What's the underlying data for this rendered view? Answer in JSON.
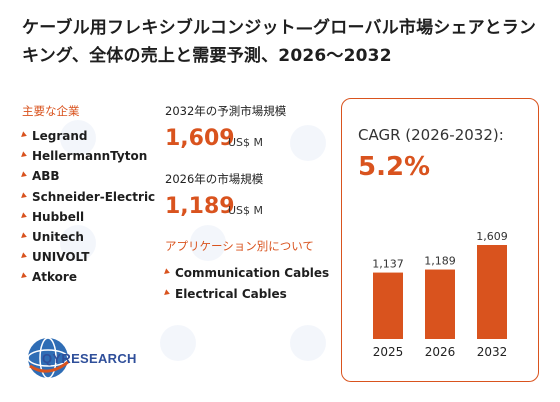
{
  "title": "ケーブル用フレキシブルコンジット—グローバル市場シェアとランキング、全体の売上と需要予測、2026～2032",
  "companies": {
    "heading": "主要な企業",
    "items": [
      "Legrand",
      "HellermannTyton",
      "ABB",
      "Schneider-Electric",
      "Hubbell",
      "Unitech",
      "UNIVOLT",
      "Atkore"
    ]
  },
  "market_2032": {
    "label": "2032年の予測市場規模",
    "value": "1,609",
    "unit": "US$ M"
  },
  "market_2026": {
    "label": "2026年の市場規模",
    "value": "1,189",
    "unit": "US$ M"
  },
  "applications": {
    "heading": "アプリケーション別について",
    "items": [
      "Communication Cables",
      "Electrical Cables"
    ]
  },
  "cagr": {
    "label": "CAGR (2026-2032):",
    "value": "5.2%"
  },
  "logo": {
    "text": "QYRESEARCH"
  },
  "colors": {
    "accent": "#d9531e",
    "text": "#1e1e1e"
  },
  "chart_data": {
    "type": "bar",
    "categories": [
      "2025",
      "2026",
      "2032"
    ],
    "values": [
      1137,
      1189,
      1609
    ],
    "value_labels": [
      "1,137",
      "1,189",
      "1,609"
    ],
    "ylim": [
      0,
      1609
    ],
    "grid": false
  }
}
